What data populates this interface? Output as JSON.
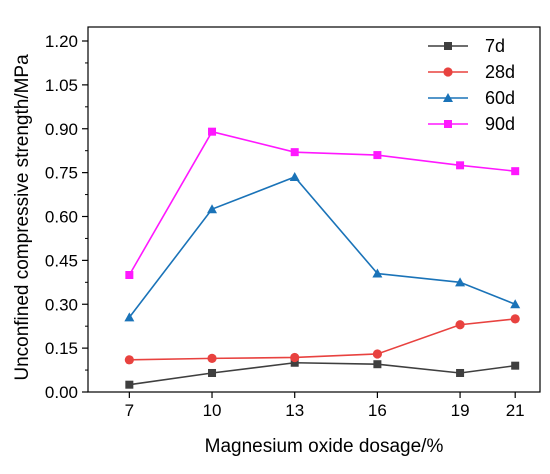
{
  "chart_data": {
    "type": "line",
    "title": "",
    "xlabel": "Magnesium oxide dosage/%",
    "ylabel": "Unconfined compressive strength/MPa",
    "x": [
      7,
      10,
      13,
      16,
      19,
      21
    ],
    "x_tick_labels": [
      "7",
      "10",
      "13",
      "16",
      "19",
      "21"
    ],
    "ylim": [
      0,
      1.2
    ],
    "y_ticks": [
      0.0,
      0.15,
      0.3,
      0.45,
      0.6,
      0.75,
      0.9,
      1.05,
      1.2
    ],
    "y_tick_labels": [
      "0.00",
      "0.15",
      "0.30",
      "0.45",
      "0.60",
      "0.75",
      "0.90",
      "1.05",
      "1.20"
    ],
    "grid": false,
    "legend_position": "top-right",
    "series": [
      {
        "name": "7d",
        "color": "#3f3f3f",
        "marker": "square",
        "values": [
          0.025,
          0.065,
          0.1,
          0.095,
          0.065,
          0.09
        ]
      },
      {
        "name": "28d",
        "color": "#e8423f",
        "marker": "circle",
        "values": [
          0.11,
          0.115,
          0.118,
          0.13,
          0.23,
          0.25
        ]
      },
      {
        "name": "60d",
        "color": "#1a73b8",
        "marker": "triangle",
        "values": [
          0.255,
          0.625,
          0.735,
          0.405,
          0.375,
          0.3
        ]
      },
      {
        "name": "90d",
        "color": "#ff18ff",
        "marker": "square",
        "values": [
          0.4,
          0.89,
          0.82,
          0.81,
          0.775,
          0.755
        ]
      }
    ]
  }
}
